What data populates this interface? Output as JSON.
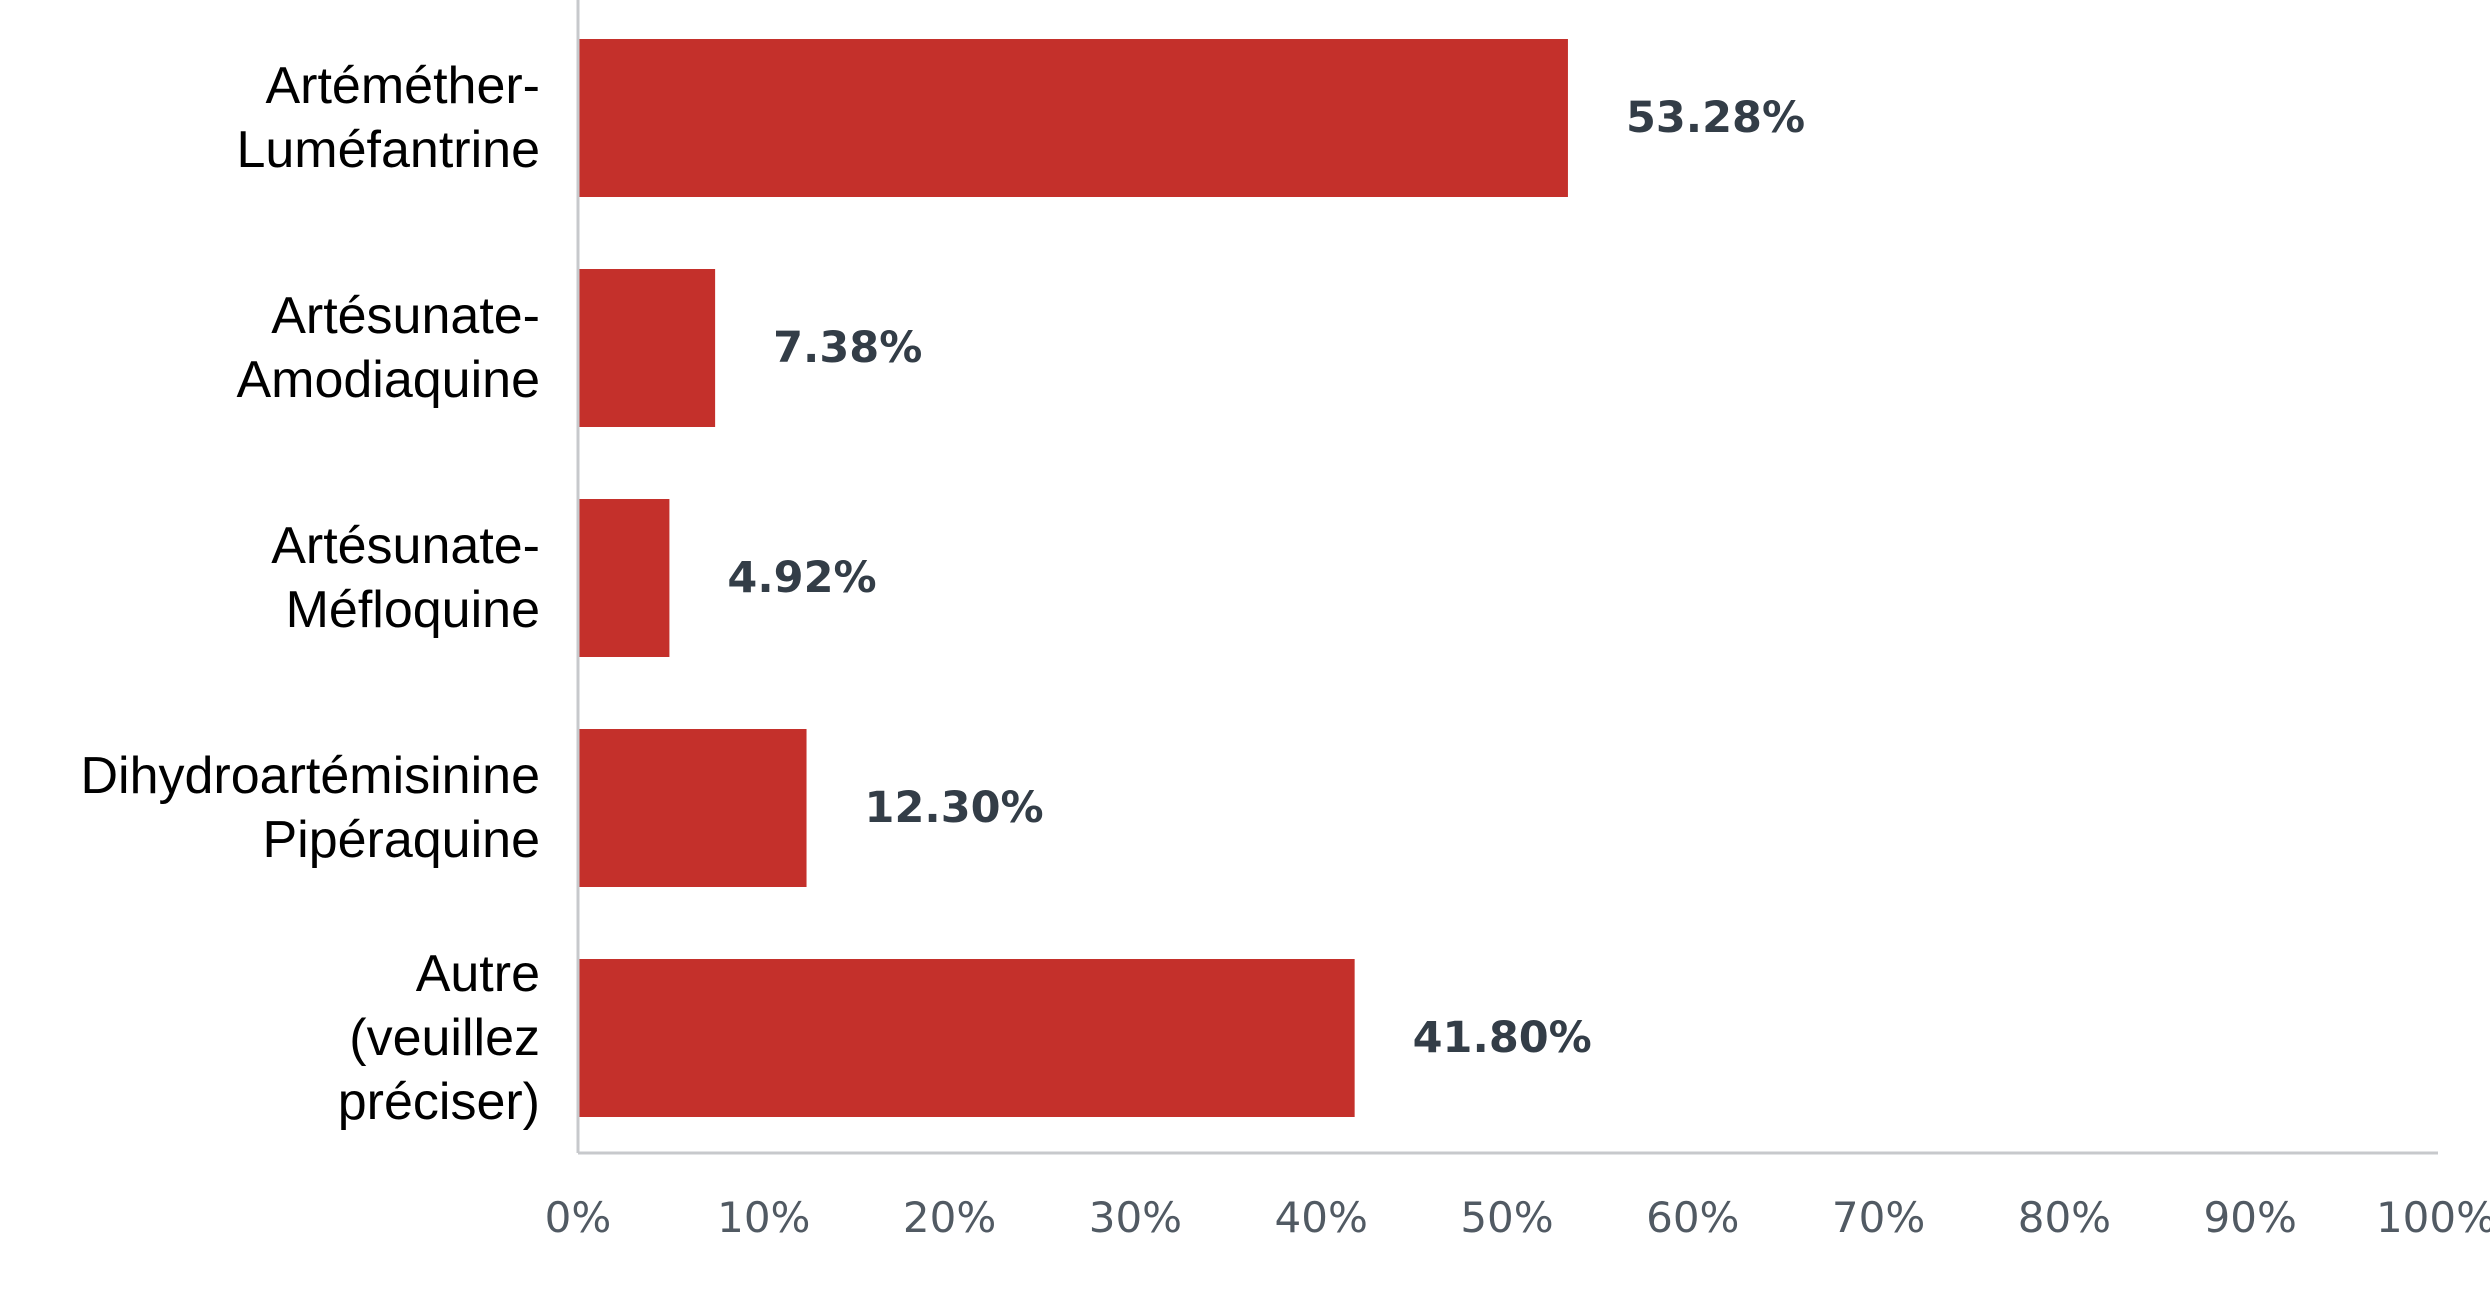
{
  "chart_data": {
    "type": "bar",
    "orientation": "horizontal",
    "categories": [
      [
        "Artéméther-",
        "Luméfantrine"
      ],
      [
        "Artésunate-",
        "Amodiaquine"
      ],
      [
        "Artésunate-",
        "Méfloquine"
      ],
      [
        "Dihydroartémisinine",
        "Pipéraquine"
      ],
      [
        "Autre",
        "(veuillez",
        "préciser)"
      ]
    ],
    "values": [
      53.28,
      7.38,
      4.92,
      12.3,
      41.8
    ],
    "value_labels": [
      "53.28%",
      "7.38%",
      "4.92%",
      "12.30%",
      "41.80%"
    ],
    "x_ticks": [
      "0%",
      "10%",
      "20%",
      "30%",
      "40%",
      "50%",
      "60%",
      "70%",
      "80%",
      "90%",
      "100%"
    ],
    "xlim": [
      0,
      100
    ],
    "title": "",
    "xlabel": "",
    "ylabel": "",
    "grid": false,
    "legend": "none",
    "bar_color": "#c4302b",
    "axis_color": "#c7c9cc"
  }
}
